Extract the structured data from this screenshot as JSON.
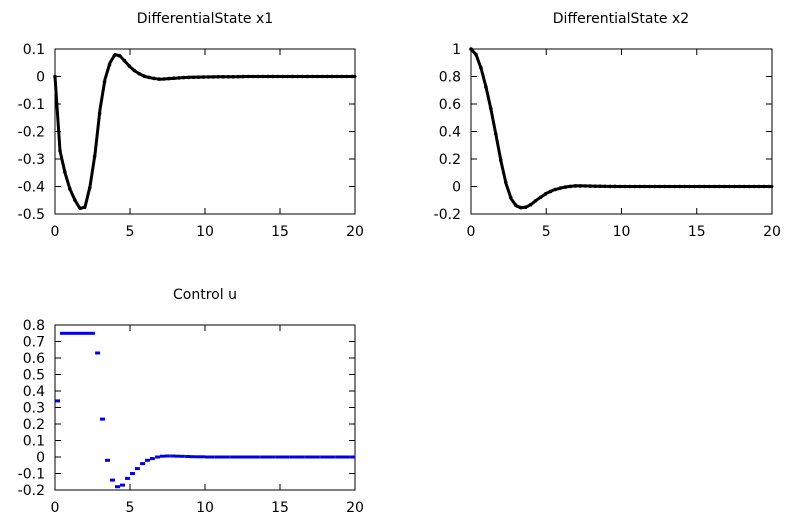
{
  "chart_data": [
    {
      "type": "line",
      "title": "DifferentialState x1",
      "xlim": [
        0,
        20
      ],
      "ylim": [
        -0.5,
        0.1
      ],
      "xticks": [
        "0",
        "5",
        "10",
        "15",
        "20"
      ],
      "yticks": [
        "0.1",
        "0",
        "-0.1",
        "-0.2",
        "-0.3",
        "-0.4",
        "-0.5"
      ],
      "color": "#000000",
      "series": [
        {
          "x": [
            0,
            0.33,
            0.67,
            1.0,
            1.33,
            1.67,
            2.0,
            2.33,
            2.67,
            3.0,
            3.33,
            3.67,
            4.0,
            4.33,
            4.67,
            5.0,
            5.33,
            5.67,
            6.0,
            6.5,
            7.0,
            7.5,
            8.0,
            8.5,
            9.0,
            10.0,
            11.0,
            12.0,
            13.0,
            14.0,
            15.0,
            16.0,
            17.0,
            18.0,
            19.0,
            20.0
          ],
          "y": [
            0.0,
            -0.27,
            -0.35,
            -0.41,
            -0.45,
            -0.48,
            -0.475,
            -0.4,
            -0.28,
            -0.12,
            -0.01,
            0.05,
            0.08,
            0.075,
            0.055,
            0.035,
            0.02,
            0.008,
            0.0,
            -0.006,
            -0.01,
            -0.008,
            -0.006,
            -0.004,
            -0.003,
            -0.002,
            -0.001,
            -0.001,
            0.0,
            0.0,
            0.0,
            0.0,
            0.0,
            0.0,
            0.0,
            0.0
          ]
        }
      ]
    },
    {
      "type": "line",
      "title": "DifferentialState x2",
      "xlim": [
        0,
        20
      ],
      "ylim": [
        -0.2,
        1
      ],
      "xticks": [
        "0",
        "5",
        "10",
        "15",
        "20"
      ],
      "yticks": [
        "1",
        "0.8",
        "0.6",
        "0.4",
        "0.2",
        "0",
        "-0.2"
      ],
      "color": "#000000",
      "series": [
        {
          "x": [
            0,
            0.33,
            0.67,
            1.0,
            1.33,
            1.67,
            2.0,
            2.33,
            2.67,
            3.0,
            3.33,
            3.67,
            4.0,
            4.33,
            4.67,
            5.0,
            5.5,
            6.0,
            6.5,
            7.0,
            7.5,
            8.0,
            9.0,
            10.0,
            11.0,
            12.0,
            13.0,
            14.0,
            15.0,
            16.0,
            17.0,
            18.0,
            19.0,
            20.0
          ],
          "y": [
            1.0,
            0.96,
            0.86,
            0.72,
            0.56,
            0.37,
            0.18,
            0.02,
            -0.09,
            -0.14,
            -0.155,
            -0.15,
            -0.13,
            -0.1,
            -0.075,
            -0.05,
            -0.025,
            -0.01,
            0.0,
            0.005,
            0.004,
            0.003,
            0.001,
            0.0,
            0.0,
            0.0,
            0.0,
            0.0,
            0.0,
            0.0,
            0.0,
            0.0,
            0.0,
            0.0
          ]
        }
      ]
    },
    {
      "type": "scatter",
      "title": "Control u",
      "xlim": [
        0,
        20
      ],
      "ylim": [
        -0.2,
        0.8
      ],
      "xticks": [
        "0",
        "5",
        "10",
        "15",
        "20"
      ],
      "yticks": [
        "0.8",
        "0.7",
        "0.6",
        "0.5",
        "0.4",
        "0.3",
        "0.2",
        "0.1",
        "0",
        "-0.1",
        "-0.2"
      ],
      "color": "#0000ee",
      "series": [
        {
          "x": [
            0.0,
            0.33,
            0.67,
            1.0,
            1.33,
            1.67,
            2.0,
            2.33,
            2.67,
            3.0,
            3.33,
            3.67,
            4.0,
            4.33,
            4.67,
            5.0,
            5.33,
            5.67,
            6.0,
            6.33,
            6.67,
            7.0,
            7.33,
            7.67,
            8.0,
            8.33,
            8.67,
            9.0,
            9.33,
            9.67,
            10.0,
            10.33,
            10.67,
            11.0,
            11.33,
            11.67,
            12.0,
            12.33,
            12.67,
            13.0,
            13.33,
            13.67,
            14.0,
            14.33,
            14.67,
            15.0,
            15.33,
            15.67,
            16.0,
            16.33,
            16.67,
            17.0,
            17.33,
            17.67,
            18.0,
            18.33,
            18.67,
            19.0,
            19.33,
            19.67
          ],
          "y": [
            0.34,
            0.75,
            0.75,
            0.75,
            0.75,
            0.75,
            0.75,
            0.75,
            0.63,
            0.23,
            -0.02,
            -0.14,
            -0.18,
            -0.17,
            -0.13,
            -0.1,
            -0.07,
            -0.04,
            -0.02,
            -0.01,
            0.0,
            0.005,
            0.006,
            0.006,
            0.005,
            0.004,
            0.003,
            0.002,
            0.001,
            0.001,
            0.0,
            0.0,
            0.0,
            0.0,
            0.0,
            0.0,
            0.0,
            0.0,
            0.0,
            0.0,
            0.0,
            0.0,
            0.0,
            0.0,
            0.0,
            0.0,
            0.0,
            0.0,
            0.0,
            0.0,
            0.0,
            0.0,
            0.0,
            0.0,
            0.0,
            0.0,
            0.0,
            0.0,
            0.0,
            0.0
          ]
        }
      ]
    }
  ]
}
